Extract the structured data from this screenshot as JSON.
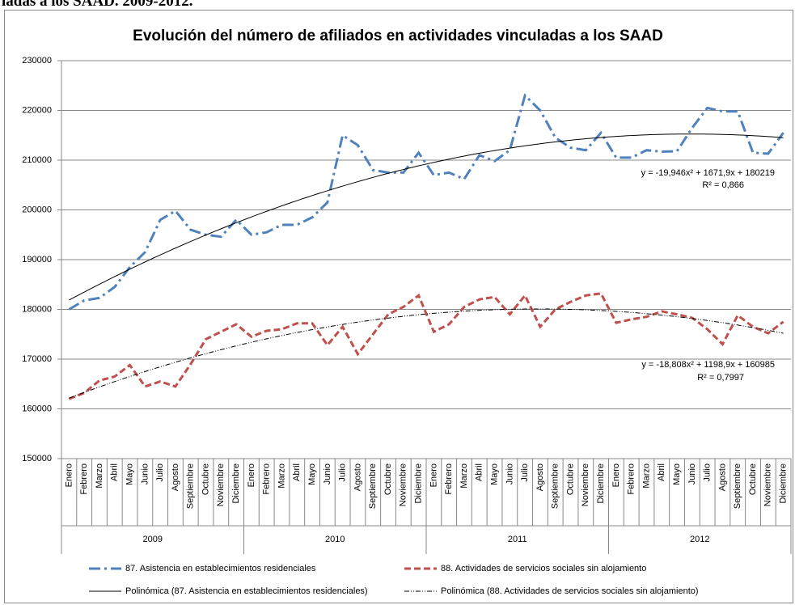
{
  "caption": "ladas a los SAAD. 2009-2012.",
  "chart_data": {
    "type": "line",
    "title": "Evolución del número de afiliados en actividades vinculadas a los SAAD",
    "categories": [
      "Enero",
      "Febrero",
      "Marzo",
      "Abril",
      "Mayo",
      "Junio",
      "Julio",
      "Agosto",
      "Septiembre",
      "Octubre",
      "Noviembre",
      "Diciembre",
      "Enero",
      "Febrero",
      "Marzo",
      "Abril",
      "Mayo",
      "Junio",
      "Julio",
      "Agosto",
      "Septiembre",
      "Octubre",
      "Noviembre",
      "Diciembre",
      "Enero",
      "Febrero",
      "Marzo",
      "Abril",
      "Mayo",
      "Junio",
      "Julio",
      "Agosto",
      "Septiembre",
      "Octubre",
      "Noviembre",
      "Diciembre",
      "Enero",
      "Febrero",
      "Marzo",
      "Abril",
      "Mayo",
      "Junio",
      "Julio",
      "Agosto",
      "Septiembre",
      "Octubre",
      "Noviembre",
      "Diciembre"
    ],
    "groups": [
      "2009",
      "2010",
      "2011",
      "2012"
    ],
    "series": [
      {
        "name": "87. Asistencia en establecimientos residenciales",
        "color": "#4f81bd",
        "values": [
          180000,
          181800,
          182300,
          184500,
          188500,
          191500,
          198000,
          199800,
          196000,
          195000,
          194600,
          198000,
          195000,
          195500,
          197000,
          197000,
          198500,
          201500,
          215000,
          213000,
          208000,
          207500,
          207500,
          211500,
          207000,
          207500,
          206200,
          211000,
          209800,
          212000,
          223000,
          220000,
          214500,
          212500,
          212000,
          215500,
          210500,
          210500,
          212000,
          211700,
          211800,
          216500,
          220500,
          219800,
          219800,
          211500,
          211300,
          215500
        ]
      },
      {
        "name": "88. Actividades de servicios sociales sin alojamiento",
        "color": "#c0504d",
        "values": [
          162000,
          163200,
          165700,
          166500,
          168800,
          164500,
          165500,
          164500,
          169000,
          174000,
          175500,
          177000,
          174500,
          175700,
          176000,
          177200,
          177200,
          172800,
          176500,
          171000,
          175000,
          179000,
          180500,
          182800,
          175500,
          177000,
          180500,
          182000,
          182500,
          179000,
          182800,
          176500,
          180000,
          181500,
          182800,
          183200,
          177300,
          178000,
          178500,
          179600,
          179000,
          178300,
          176000,
          173000,
          178800,
          176500,
          175200,
          177500
        ]
      }
    ],
    "trendlines": [
      {
        "name": "Polinómica (87. Asistencia en establecimientos residenciales)",
        "color": "#000000",
        "coefficients": [
          -19.946,
          1671.9,
          180219
        ],
        "equation": "y = -19,946x² + 1671,9x + 180219",
        "r2": "R² = 0,866"
      },
      {
        "name": "Polinómica (88. Actividades de servicios sociales sin alojamiento)",
        "color": "#000000",
        "coefficients": [
          -18.808,
          1198.9,
          160985
        ],
        "equation": "y = -18,808x² + 1198,9x + 160985",
        "r2": "R² = 0,7997"
      }
    ],
    "ylim": [
      150000,
      230000
    ],
    "yticks": [
      150000,
      160000,
      170000,
      180000,
      190000,
      200000,
      210000,
      220000,
      230000
    ],
    "grid": true,
    "legend": "bottom"
  }
}
